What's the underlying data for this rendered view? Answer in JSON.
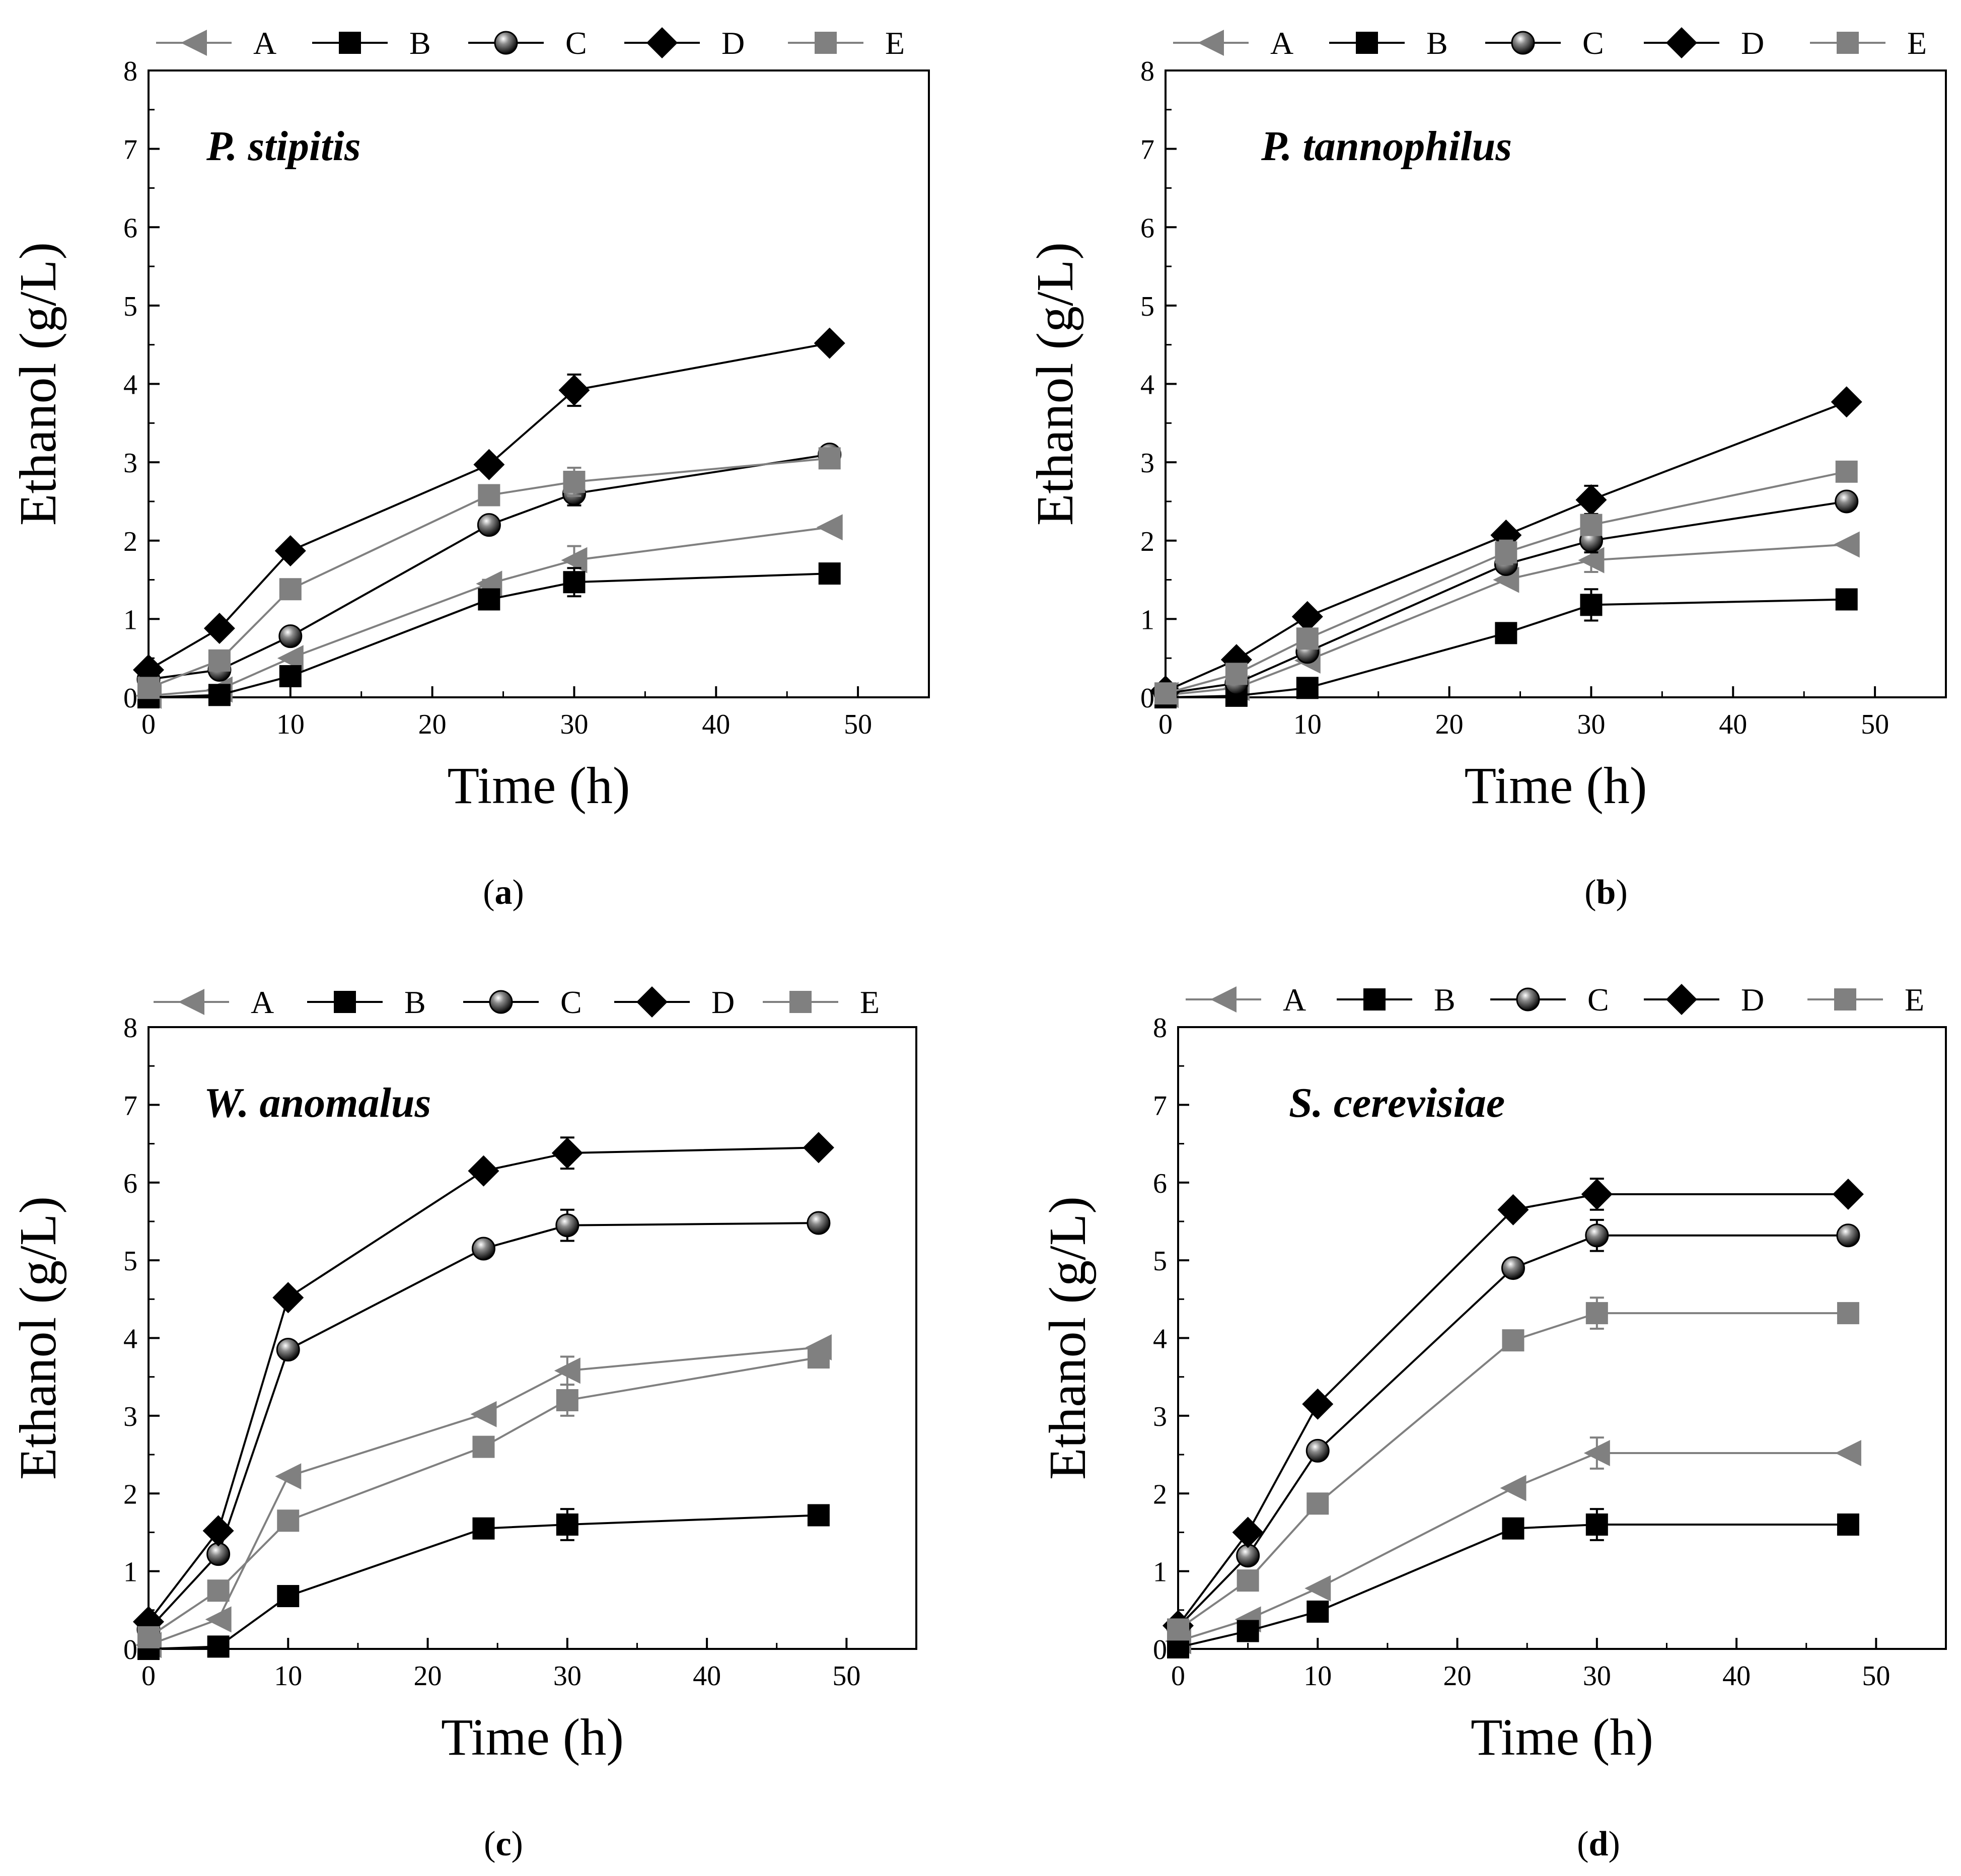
{
  "chart_data": [
    {
      "type": "line",
      "panel_label": "a",
      "title": "P. stipitis",
      "xlabel": "Time (h)",
      "ylabel": "Ethanol (g/L)",
      "xlim": [
        0,
        55
      ],
      "ylim": [
        0,
        8
      ],
      "xticks": [
        0,
        10,
        20,
        30,
        40,
        50
      ],
      "yticks": [
        0,
        1,
        2,
        3,
        4,
        5,
        6,
        7,
        8
      ],
      "x": [
        0,
        5,
        10,
        24,
        30,
        48
      ],
      "series": [
        {
          "name": "A",
          "values": [
            0.02,
            0.1,
            0.5,
            1.45,
            1.75,
            2.17
          ],
          "errors": [
            0,
            0,
            0,
            0.05,
            0.18,
            0
          ]
        },
        {
          "name": "B",
          "values": [
            0.0,
            0.03,
            0.27,
            1.25,
            1.47,
            1.58
          ],
          "errors": [
            0,
            0,
            0,
            0,
            0.18,
            0
          ]
        },
        {
          "name": "C",
          "values": [
            0.23,
            0.35,
            0.78,
            2.2,
            2.6,
            3.1
          ],
          "errors": [
            0,
            0,
            0,
            0,
            0.15,
            0
          ]
        },
        {
          "name": "D",
          "values": [
            0.35,
            0.88,
            1.87,
            2.97,
            3.92,
            4.52
          ],
          "errors": [
            0,
            0,
            0,
            0,
            0.2,
            0
          ]
        },
        {
          "name": "E",
          "values": [
            0.12,
            0.47,
            1.38,
            2.58,
            2.75,
            3.05
          ],
          "errors": [
            0,
            0,
            0,
            0,
            0.18,
            0
          ]
        }
      ]
    },
    {
      "type": "line",
      "panel_label": "b",
      "title": "P. tannophilus",
      "xlabel": "Time (h)",
      "ylabel": "Ethanol (g/L)",
      "xlim": [
        0,
        55
      ],
      "ylim": [
        0,
        8
      ],
      "xticks": [
        0,
        10,
        20,
        30,
        40,
        50
      ],
      "yticks": [
        0,
        1,
        2,
        3,
        4,
        5,
        6,
        7,
        8
      ],
      "x": [
        0,
        5,
        10,
        24,
        30,
        48
      ],
      "series": [
        {
          "name": "A",
          "values": [
            0.03,
            0.12,
            0.47,
            1.5,
            1.75,
            1.95
          ],
          "errors": [
            0,
            0,
            0,
            0,
            0.15,
            0
          ]
        },
        {
          "name": "B",
          "values": [
            0.0,
            0.02,
            0.12,
            0.82,
            1.18,
            1.25
          ],
          "errors": [
            0,
            0,
            0,
            0,
            0.2,
            0
          ]
        },
        {
          "name": "C",
          "values": [
            0.05,
            0.18,
            0.58,
            1.7,
            2.0,
            2.5
          ],
          "errors": [
            0,
            0,
            0,
            0,
            0.15,
            0
          ]
        },
        {
          "name": "D",
          "values": [
            0.08,
            0.48,
            1.03,
            2.07,
            2.52,
            3.77
          ],
          "errors": [
            0,
            0,
            0,
            0,
            0.18,
            0
          ]
        },
        {
          "name": "E",
          "values": [
            0.05,
            0.3,
            0.75,
            1.85,
            2.2,
            2.88
          ],
          "errors": [
            0,
            0,
            0,
            0.15,
            0.12,
            0
          ]
        }
      ]
    },
    {
      "type": "line",
      "panel_label": "c",
      "title": "W. anomalus",
      "xlabel": "Time (h)",
      "ylabel": "Ethanol (g/L)",
      "xlim": [
        0,
        55
      ],
      "ylim": [
        0,
        8
      ],
      "xticks": [
        0,
        10,
        20,
        30,
        40,
        50
      ],
      "yticks": [
        0,
        1,
        2,
        3,
        4,
        5,
        6,
        7,
        8
      ],
      "x": [
        0,
        5,
        10,
        24,
        30,
        48
      ],
      "series": [
        {
          "name": "A",
          "values": [
            0.05,
            0.38,
            2.22,
            3.02,
            3.58,
            3.88
          ],
          "errors": [
            0,
            0,
            0,
            0,
            0.18,
            0
          ]
        },
        {
          "name": "B",
          "values": [
            0.0,
            0.03,
            0.68,
            1.55,
            1.6,
            1.72
          ],
          "errors": [
            0,
            0,
            0,
            0,
            0.2,
            0
          ]
        },
        {
          "name": "C",
          "values": [
            0.25,
            1.22,
            3.85,
            5.15,
            5.45,
            5.48
          ],
          "errors": [
            0,
            0,
            0,
            0,
            0.2,
            0
          ]
        },
        {
          "name": "D",
          "values": [
            0.35,
            1.52,
            4.52,
            6.15,
            6.38,
            6.45
          ],
          "errors": [
            0,
            0,
            0,
            0,
            0.2,
            0
          ]
        },
        {
          "name": "E",
          "values": [
            0.15,
            0.75,
            1.65,
            2.6,
            3.2,
            3.75
          ],
          "errors": [
            0,
            0,
            0,
            0,
            0.2,
            0
          ]
        }
      ]
    },
    {
      "type": "line",
      "panel_label": "d",
      "title": "S. cerevisiae",
      "xlabel": "Time (h)",
      "ylabel": "Ethanol (g/L)",
      "xlim": [
        0,
        55
      ],
      "ylim": [
        0,
        8
      ],
      "xticks": [
        0,
        10,
        20,
        30,
        40,
        50
      ],
      "yticks": [
        0,
        1,
        2,
        3,
        4,
        5,
        6,
        7,
        8
      ],
      "x": [
        0,
        5,
        10,
        24,
        30,
        48
      ],
      "series": [
        {
          "name": "A",
          "values": [
            0.1,
            0.38,
            0.78,
            2.07,
            2.52,
            2.52
          ],
          "errors": [
            0,
            0,
            0,
            0,
            0.2,
            0
          ]
        },
        {
          "name": "B",
          "values": [
            0.02,
            0.23,
            0.48,
            1.55,
            1.6,
            1.6
          ],
          "errors": [
            0,
            0,
            0,
            0,
            0.2,
            0
          ]
        },
        {
          "name": "C",
          "values": [
            0.28,
            1.2,
            2.55,
            4.9,
            5.32,
            5.32
          ],
          "errors": [
            0,
            0,
            0,
            0,
            0.2,
            0
          ]
        },
        {
          "name": "D",
          "values": [
            0.3,
            1.5,
            3.15,
            5.65,
            5.85,
            5.85
          ],
          "errors": [
            0,
            0,
            0,
            0,
            0.2,
            0
          ]
        },
        {
          "name": "E",
          "values": [
            0.25,
            0.88,
            1.87,
            3.97,
            4.32,
            4.32
          ],
          "errors": [
            0,
            0,
            0,
            0,
            0.2,
            0
          ]
        }
      ]
    }
  ],
  "styles": {
    "A": {
      "marker": "triangle-left",
      "color": "#808080"
    },
    "B": {
      "marker": "square",
      "color": "#000000"
    },
    "C": {
      "marker": "sphere",
      "color": "#000000"
    },
    "D": {
      "marker": "diamond",
      "color": "#000000"
    },
    "E": {
      "marker": "square",
      "color": "#808080"
    }
  }
}
